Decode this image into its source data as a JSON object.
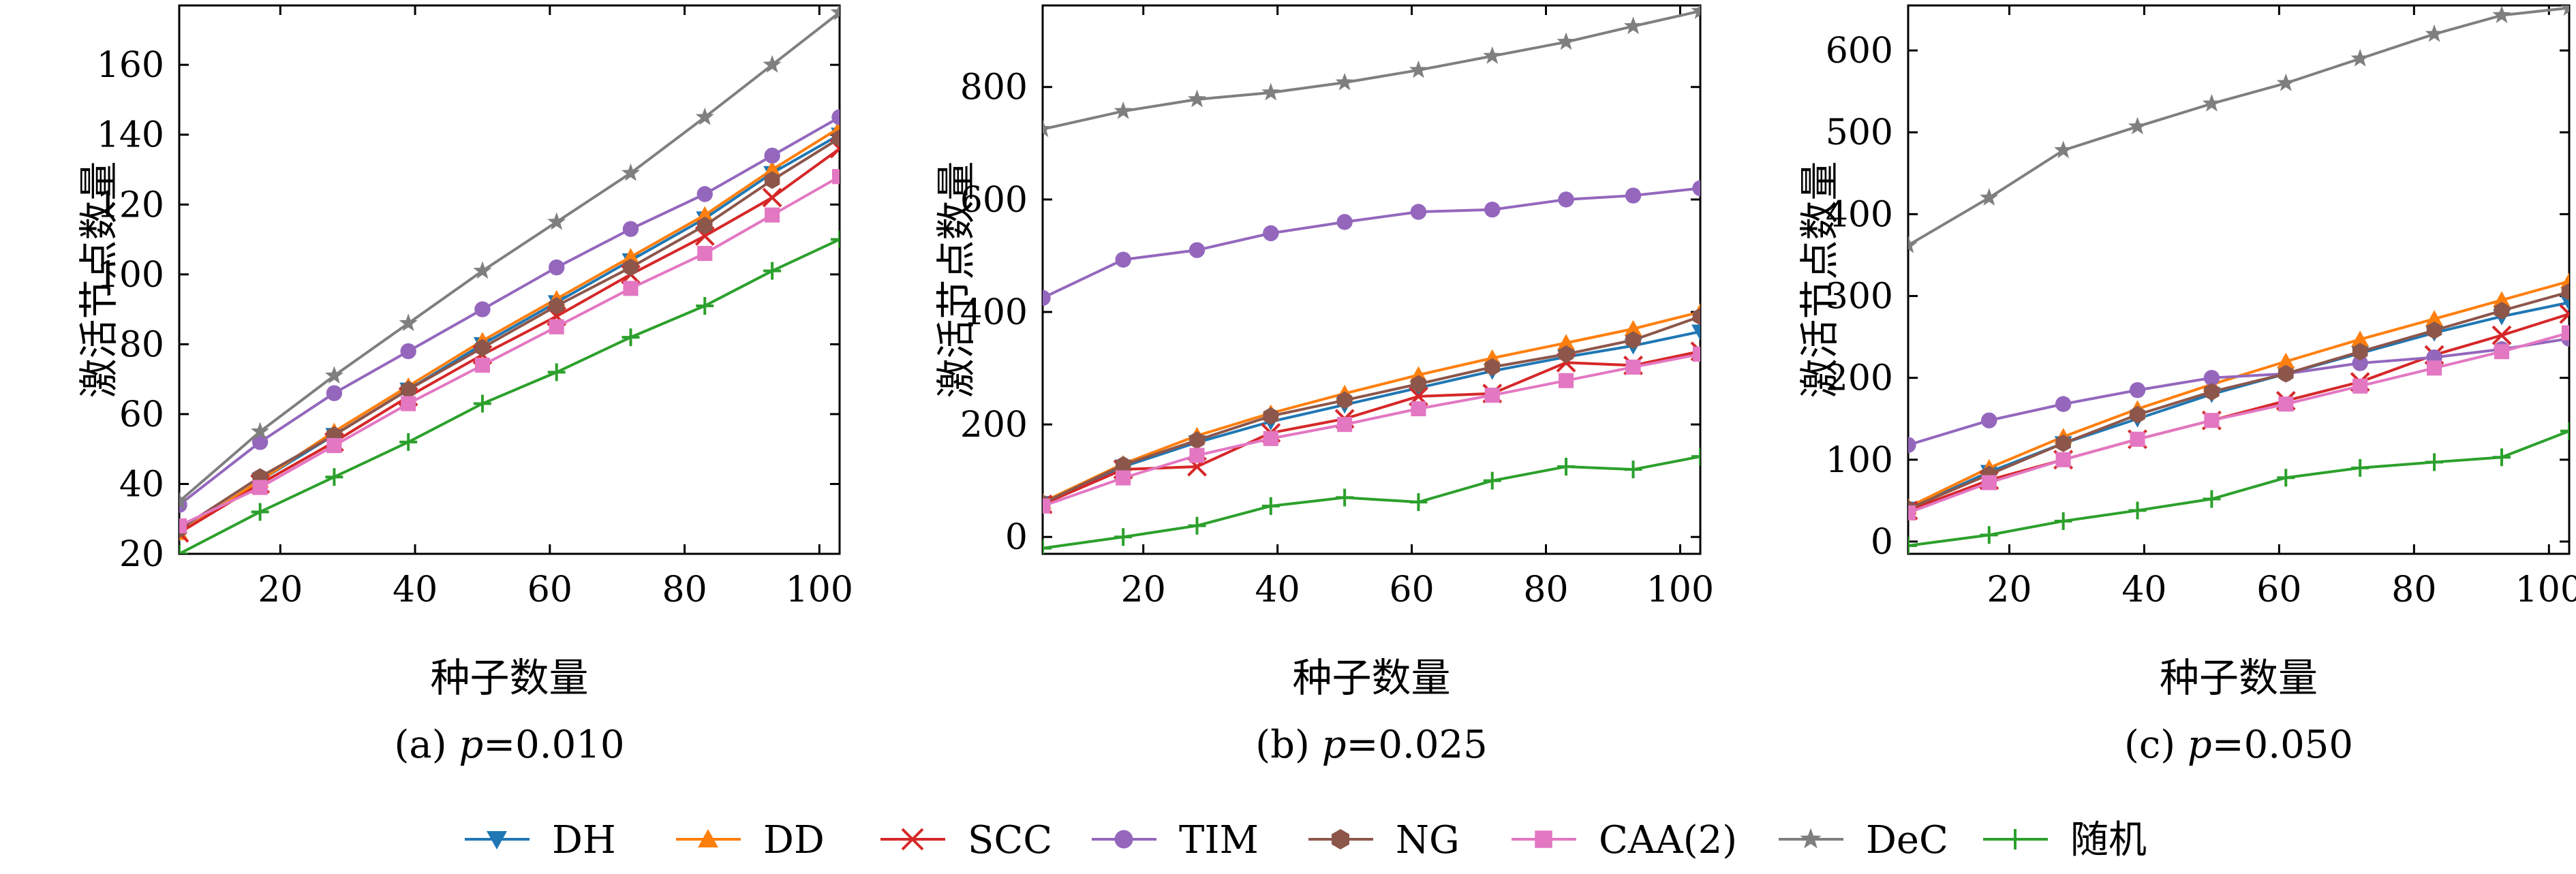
{
  "figure": {
    "legend": [
      {
        "name": "DH",
        "color": "#1f77b4",
        "marker": "triangle-down"
      },
      {
        "name": "DD",
        "color": "#ff7f0e",
        "marker": "triangle-up"
      },
      {
        "name": "SCC",
        "color": "#d62728",
        "marker": "x"
      },
      {
        "name": "TIM",
        "color": "#9467bd",
        "marker": "circle"
      },
      {
        "name": "NG",
        "color": "#8c564b",
        "marker": "hexagon"
      },
      {
        "name": "CAA(2)",
        "color": "#e377c2",
        "marker": "square"
      },
      {
        "name": "DeC",
        "color": "#7f7f7f",
        "marker": "star"
      },
      {
        "name": "随机",
        "color": "#2ca02c",
        "marker": "plus"
      }
    ]
  },
  "chart_data": [
    {
      "type": "line",
      "caption_prefix": "(a) ",
      "caption_var": "p",
      "caption_value": "=0.010",
      "xlabel": "种子数量",
      "ylabel": "激活节点数量",
      "xlim": [
        5,
        103
      ],
      "ylim": [
        20,
        177
      ],
      "xticks": [
        20,
        40,
        60,
        80,
        100
      ],
      "yticks": [
        20,
        40,
        60,
        80,
        100,
        120,
        140,
        160
      ],
      "x": [
        5,
        17,
        28,
        39,
        50,
        61,
        72,
        83,
        93,
        103
      ],
      "series": [
        {
          "name": "DH",
          "values": [
            26,
            41,
            54,
            67,
            80,
            92,
            104,
            116,
            129,
            140
          ]
        },
        {
          "name": "DD",
          "values": [
            26,
            41,
            55,
            68,
            81,
            93,
            105,
            117,
            130,
            142
          ]
        },
        {
          "name": "SCC",
          "values": [
            26,
            40,
            52,
            65,
            77,
            88,
            100,
            111,
            122,
            136
          ]
        },
        {
          "name": "TIM",
          "values": [
            34,
            52,
            66,
            78,
            90,
            102,
            113,
            123,
            134,
            145
          ]
        },
        {
          "name": "NG",
          "values": [
            27,
            42,
            54,
            67,
            79,
            91,
            102,
            114,
            127,
            139
          ]
        },
        {
          "name": "CAA(2)",
          "values": [
            28,
            39,
            51,
            63,
            74,
            85,
            96,
            106,
            117,
            128
          ]
        },
        {
          "name": "DeC",
          "values": [
            35,
            55,
            71,
            86,
            101,
            115,
            129,
            145,
            160,
            175
          ]
        },
        {
          "name": "随机",
          "values": [
            20,
            32,
            42,
            52,
            63,
            72,
            82,
            91,
            101,
            110
          ]
        }
      ]
    },
    {
      "type": "line",
      "caption_prefix": "(b) ",
      "caption_var": "p",
      "caption_value": "=0.025",
      "xlabel": "种子数量",
      "ylabel": "激活节点数量",
      "xlim": [
        5,
        103
      ],
      "ylim": [
        -30,
        945
      ],
      "xticks": [
        20,
        40,
        60,
        80,
        100
      ],
      "yticks": [
        0,
        200,
        400,
        600,
        800
      ],
      "x": [
        5,
        17,
        28,
        39,
        50,
        61,
        72,
        83,
        93,
        103
      ],
      "series": [
        {
          "name": "DH",
          "values": [
            60,
            125,
            168,
            205,
            235,
            265,
            295,
            320,
            340,
            365
          ]
        },
        {
          "name": "DD",
          "values": [
            62,
            130,
            180,
            220,
            255,
            288,
            318,
            345,
            370,
            400
          ]
        },
        {
          "name": "SCC",
          "values": [
            58,
            120,
            125,
            185,
            210,
            250,
            255,
            310,
            305,
            330
          ]
        },
        {
          "name": "TIM",
          "values": [
            425,
            493,
            510,
            540,
            560,
            578,
            582,
            600,
            607,
            620
          ]
        },
        {
          "name": "NG",
          "values": [
            60,
            128,
            172,
            215,
            243,
            272,
            302,
            325,
            350,
            392
          ]
        },
        {
          "name": "CAA(2)",
          "values": [
            55,
            105,
            145,
            175,
            200,
            228,
            252,
            278,
            302,
            325
          ]
        },
        {
          "name": "DeC",
          "values": [
            725,
            757,
            778,
            790,
            808,
            830,
            855,
            880,
            908,
            935
          ]
        },
        {
          "name": "随机",
          "values": [
            -20,
            0,
            20,
            55,
            70,
            62,
            100,
            125,
            120,
            143
          ]
        }
      ]
    },
    {
      "type": "line",
      "caption_prefix": "(c) ",
      "caption_var": "p",
      "caption_value": "=0.050",
      "xlabel": "种子数量",
      "ylabel": "激活节点数量",
      "xlim": [
        5,
        103
      ],
      "ylim": [
        -15,
        655
      ],
      "xticks": [
        20,
        40,
        60,
        80,
        100
      ],
      "yticks": [
        0,
        100,
        200,
        300,
        400,
        500,
        600
      ],
      "x": [
        5,
        17,
        28,
        39,
        50,
        61,
        72,
        83,
        93,
        103
      ],
      "series": [
        {
          "name": "DH",
          "values": [
            40,
            85,
            120,
            150,
            180,
            205,
            230,
            255,
            275,
            292
          ]
        },
        {
          "name": "DD",
          "values": [
            42,
            90,
            128,
            162,
            192,
            220,
            247,
            272,
            295,
            318
          ]
        },
        {
          "name": "SCC",
          "values": [
            38,
            75,
            100,
            125,
            148,
            172,
            195,
            228,
            252,
            278
          ]
        },
        {
          "name": "TIM",
          "values": [
            118,
            148,
            168,
            185,
            200,
            205,
            218,
            225,
            235,
            248
          ]
        },
        {
          "name": "NG",
          "values": [
            40,
            82,
            120,
            155,
            183,
            205,
            232,
            258,
            282,
            305
          ]
        },
        {
          "name": "CAA(2)",
          "values": [
            35,
            72,
            100,
            125,
            148,
            168,
            190,
            212,
            232,
            255
          ]
        },
        {
          "name": "DeC",
          "values": [
            362,
            420,
            478,
            507,
            535,
            560,
            590,
            620,
            643,
            652
          ]
        },
        {
          "name": "随机",
          "values": [
            -5,
            8,
            25,
            38,
            52,
            78,
            90,
            97,
            103,
            135
          ]
        }
      ]
    }
  ]
}
